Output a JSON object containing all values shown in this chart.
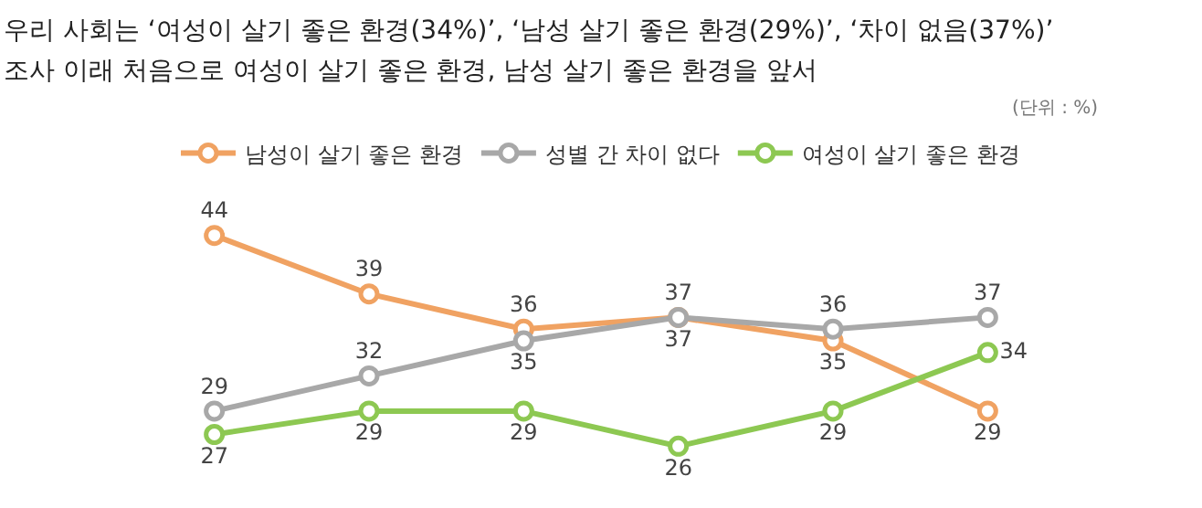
{
  "chart_data": {
    "type": "line",
    "title": "우리 사회는 ‘여성이 살기 좋은 환경(34%)’, ‘남성 살기 좋은 환경(29%)’, ‘차이 없음(37%)’",
    "subtitle": "조사 이래 처음으로 여성이 살기 좋은 환경, 남성 살기 좋은 환경을 앞서",
    "annotations": [
      "(단위 : %)"
    ],
    "categories": [
      null,
      null,
      null,
      null,
      null,
      null
    ],
    "series": [
      {
        "name": "남성이 살기 좋은 환경",
        "color": "#f0a262",
        "values": [
          44,
          39,
          36,
          37,
          35,
          29
        ]
      },
      {
        "name": "성별 간 차이 없다",
        "color": "#a8a8a8",
        "values": [
          29,
          32,
          35,
          37,
          36,
          37
        ]
      },
      {
        "name": "여성이 살기 좋은 환경",
        "color": "#8dc852",
        "values": [
          27,
          29,
          29,
          26,
          29,
          34
        ]
      }
    ],
    "data_labels": true,
    "marker": "circle",
    "line_style": "solid",
    "legend": "top"
  }
}
